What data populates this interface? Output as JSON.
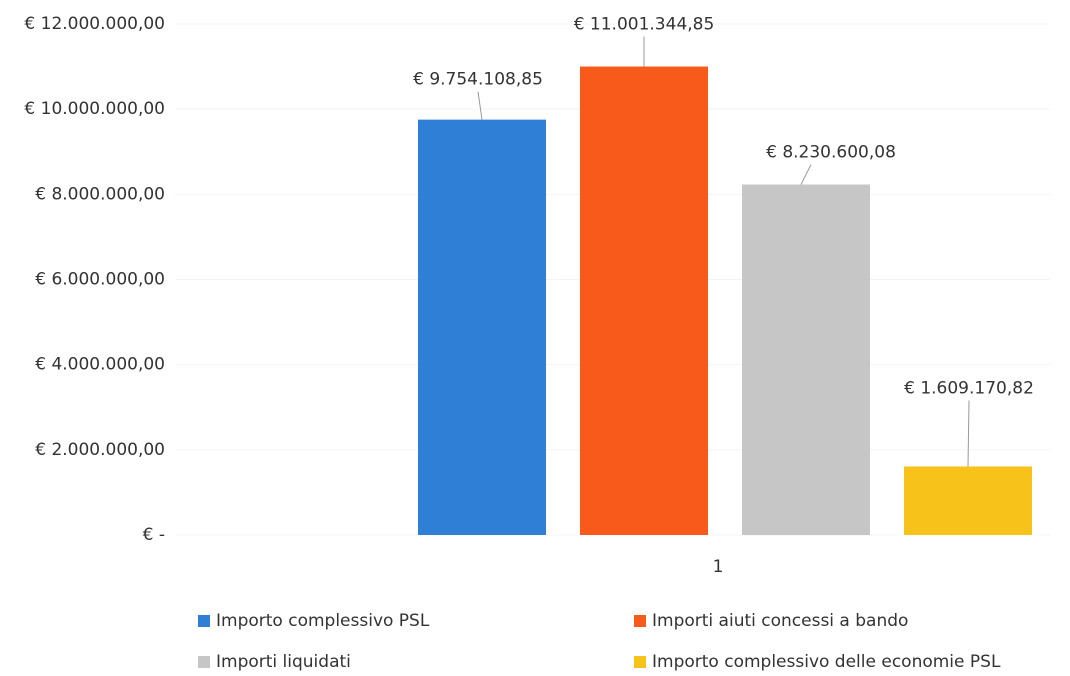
{
  "chart_data": {
    "type": "bar",
    "categories": [
      "1"
    ],
    "series": [
      {
        "name": "Importo complessivo PSL",
        "color": "#2f7fd6",
        "values": [
          9754108.85
        ],
        "value_labels": [
          "€ 9.754.108,85"
        ]
      },
      {
        "name": "Importi aiuti concessi a bando",
        "color": "#f75a1a",
        "values": [
          11001344.85
        ],
        "value_labels": [
          "€ 11.001.344,85"
        ]
      },
      {
        "name": "Importi liquidati",
        "color": "#c6c6c6",
        "values": [
          8230600.08
        ],
        "value_labels": [
          "€ 8.230.600,08"
        ]
      },
      {
        "name": "Importo complessivo delle economie PSL",
        "color": "#f7c21a",
        "values": [
          1609170.82
        ],
        "value_labels": [
          "€ 1.609.170,82"
        ]
      }
    ],
    "ylim": [
      0,
      12000000
    ],
    "yticks": [
      {
        "value": 0,
        "label": "€ -"
      },
      {
        "value": 2000000,
        "label": "€ 2.000.000,00"
      },
      {
        "value": 4000000,
        "label": "€ 4.000.000,00"
      },
      {
        "value": 6000000,
        "label": "€ 6.000.000,00"
      },
      {
        "value": 8000000,
        "label": "€ 8.000.000,00"
      },
      {
        "value": 10000000,
        "label": "€ 10.000.000,00"
      },
      {
        "value": 12000000,
        "label": "€ 12.000.000,00"
      }
    ],
    "legend": "bottom"
  }
}
